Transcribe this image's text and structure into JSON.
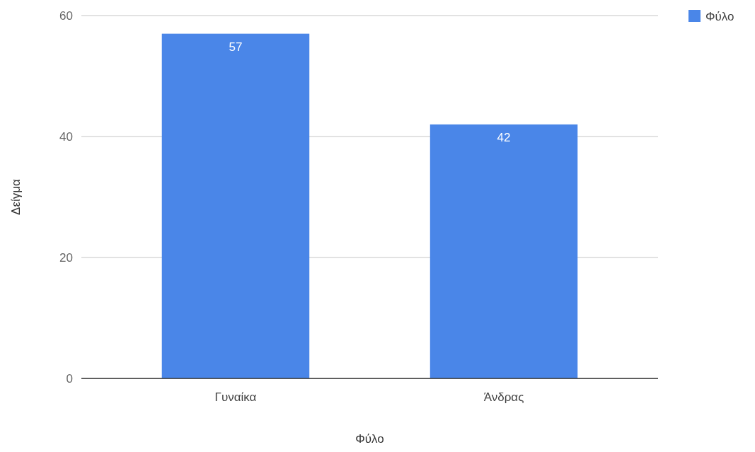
{
  "chart_data": {
    "type": "bar",
    "xlabel": "Φύλο",
    "ylabel": "Δείγμα",
    "categories": [
      "Γυναίκα",
      "Άνδρας"
    ],
    "series": [
      {
        "name": "Φύλο",
        "color": "#4a86e8",
        "values": [
          57,
          42
        ]
      }
    ],
    "ylim": [
      0,
      60
    ],
    "yticks": [
      0,
      20,
      40,
      60
    ],
    "grid": "y",
    "legend": "top right",
    "data_labels": true
  }
}
